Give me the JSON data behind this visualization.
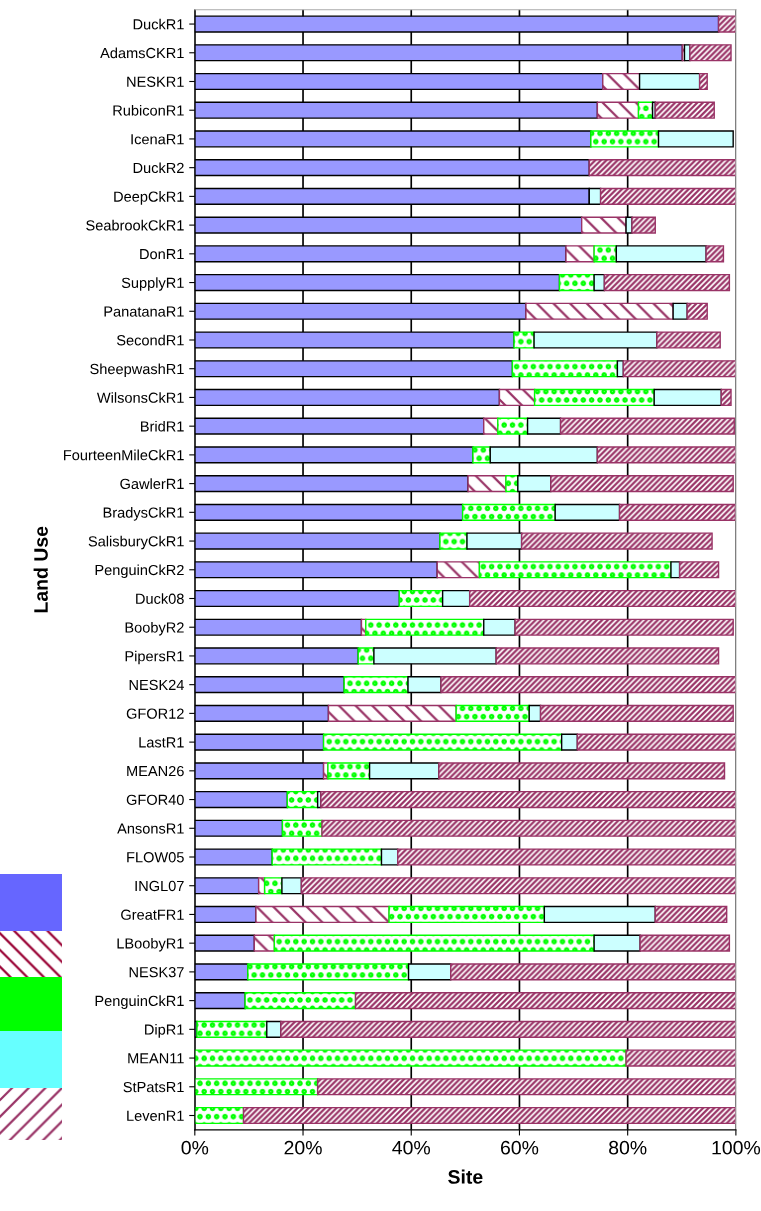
{
  "chart_data": {
    "type": "bar",
    "orientation": "horizontal",
    "stacked": true,
    "xlabel": "Site",
    "ylabel": "Land Use",
    "categories": [
      "DuckR1",
      "AdamsCKR1",
      "NESKR1",
      "RubiconR1",
      "IcenaR1",
      "DuckR2",
      "DeepCkR1",
      "SeabrookCkR1",
      "DonR1",
      "SupplyR1",
      "PanatanaR1",
      "SecondR1",
      "SheepwashR1",
      "WilsonsCkR1",
      "BridR1",
      "FourteenMileCkR1",
      "GawlerR1",
      "BradysCkR1",
      "SalisburyCkR1",
      "PenguinCkR2",
      "Duck08",
      "BoobyR2",
      "PipersR1",
      "NESK24",
      "GFOR12",
      "LastR1",
      "MEAN26",
      "GFOR40",
      "AnsonsR1",
      "FLOW05",
      "INGL07",
      "GreatFR1",
      "LBoobyR1",
      "NESK37",
      "PenguinCkR1",
      "DipR1",
      "MEAN11",
      "StPatsR1",
      "LevenR1"
    ],
    "series": [
      {
        "color": "#9999ff",
        "values": [
          96.8,
          90.1,
          75.4,
          74.4,
          73.2,
          72.9,
          72.9,
          71.5,
          68.6,
          67.4,
          61.2,
          59.0,
          58.7,
          56.3,
          53.4,
          51.4,
          50.5,
          49.5,
          45.3,
          44.8,
          37.8,
          30.8,
          30.2,
          27.6,
          24.7,
          23.8,
          23.8,
          17.1,
          16.2,
          14.3,
          11.8,
          11.3,
          11.0,
          9.8,
          9.3,
          0.4,
          0,
          0,
          0
        ]
      },
      {
        "color": "#993366",
        "values": [
          0,
          0.4,
          6.8,
          7.6,
          0,
          0,
          0,
          8.2,
          5.2,
          0,
          27.2,
          0,
          0,
          6.5,
          2.6,
          0,
          7.0,
          0,
          0,
          7.8,
          0,
          0.8,
          0,
          0,
          23.6,
          0,
          0.8,
          0,
          0,
          0,
          1.1,
          24.6,
          3.7,
          0,
          0,
          0,
          0,
          0,
          0
        ]
      },
      {
        "color": "#00ff00",
        "values": [
          0,
          0,
          0,
          2.6,
          12.5,
          0,
          0,
          0,
          4.1,
          6.4,
          0,
          3.7,
          19.4,
          22.1,
          5.5,
          3.2,
          2.2,
          17.1,
          5.0,
          35.4,
          8.0,
          21.8,
          2.9,
          11.8,
          13.5,
          44.0,
          7.7,
          5.6,
          7.3,
          20.2,
          3.2,
          28.7,
          59.1,
          29.7,
          20.4,
          12.9,
          79.7,
          22.7,
          9.0
        ]
      },
      {
        "color": "#ccffff",
        "values": [
          0,
          1.0,
          11.1,
          0.5,
          13.8,
          0,
          2.1,
          1.1,
          16.6,
          1.9,
          2.6,
          22.7,
          1.1,
          12.4,
          6.1,
          19.8,
          6.1,
          11.9,
          10.1,
          1.6,
          5.0,
          5.8,
          22.6,
          6.1,
          2.1,
          2.9,
          12.8,
          0.6,
          0,
          3.0,
          3.6,
          20.5,
          8.5,
          7.8,
          0,
          2.6,
          0,
          0,
          0
        ]
      },
      {
        "color": "#993366",
        "values": [
          3.2,
          7.6,
          1.4,
          10.9,
          0,
          27.1,
          25.0,
          4.3,
          3.2,
          23.1,
          3.7,
          11.7,
          20.8,
          1.8,
          32.1,
          25.6,
          33.7,
          21.4,
          35.2,
          7.2,
          49.2,
          40.3,
          41.1,
          54.5,
          35.6,
          29.3,
          52.8,
          76.7,
          76.5,
          62.5,
          80.3,
          13.2,
          16.5,
          52.7,
          70.3,
          84.1,
          20.3,
          77.3,
          91.0
        ]
      }
    ],
    "xlim": [
      0,
      100
    ],
    "xticks": [
      {
        "value": 0,
        "label": "0%"
      },
      {
        "value": 20,
        "label": "20%"
      },
      {
        "value": 40,
        "label": "40%"
      },
      {
        "value": 60,
        "label": "60%"
      },
      {
        "value": 80,
        "label": "80%"
      },
      {
        "value": 100,
        "label": "100%"
      }
    ],
    "grid": "x"
  }
}
